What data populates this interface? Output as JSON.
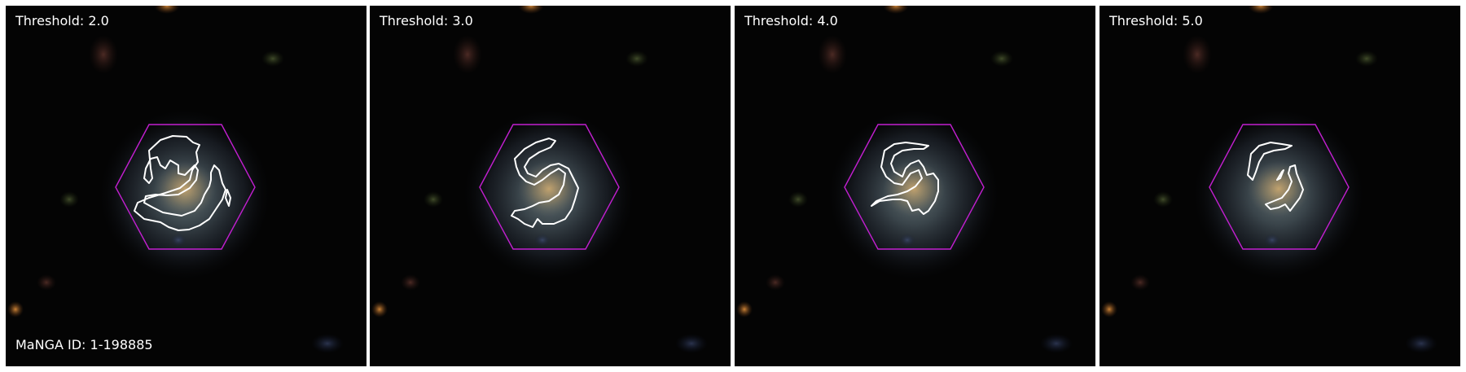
{
  "figure": {
    "galaxy_id_label": "MaNGA ID: 1-198885",
    "panels": [
      {
        "threshold_label": "Threshold: 2.0"
      },
      {
        "threshold_label": "Threshold: 3.0"
      },
      {
        "threshold_label": "Threshold: 4.0"
      },
      {
        "threshold_label": "Threshold: 5.0"
      }
    ],
    "colors": {
      "background": "#030303",
      "hexagon": "#c21fd0",
      "contour": "#ffffff",
      "label_text": "#ffffff"
    },
    "icons": [
      "ifu-hexagon-outline",
      "spiral-arm-contour"
    ]
  }
}
